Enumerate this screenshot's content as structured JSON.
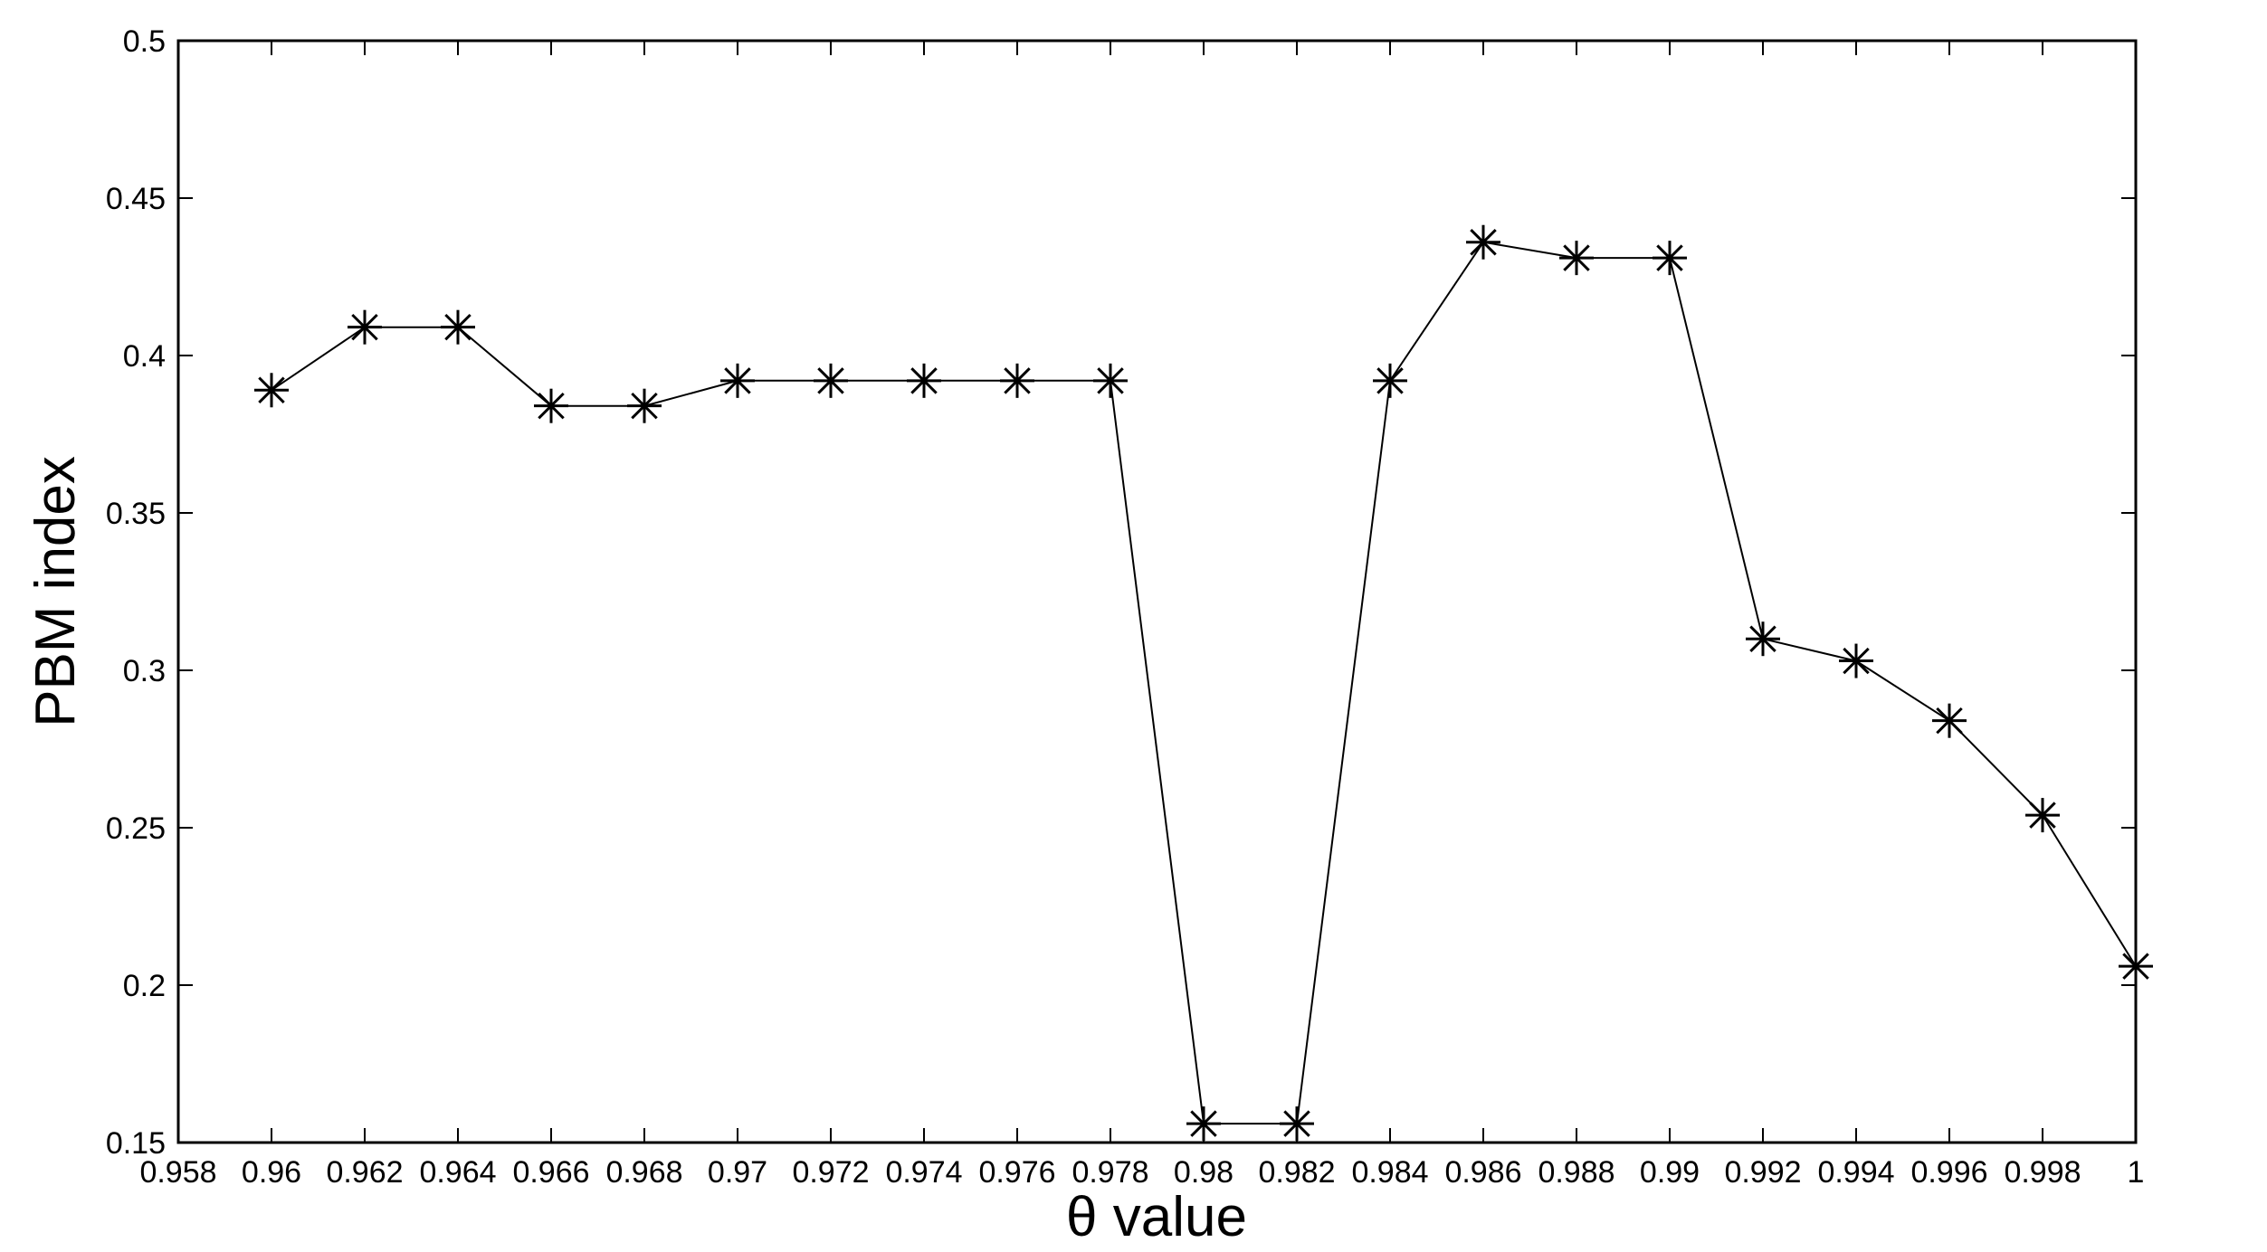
{
  "chart_data": {
    "type": "line",
    "xlabel": "θ value",
    "ylabel": "PBM index",
    "xlim": [
      0.958,
      1.0
    ],
    "ylim": [
      0.15,
      0.5
    ],
    "x_ticks": [
      "0.958",
      "0.96",
      "0.962",
      "0.964",
      "0.966",
      "0.968",
      "0.97",
      "0.972",
      "0.974",
      "0.976",
      "0.978",
      "0.98",
      "0.982",
      "0.984",
      "0.986",
      "0.988",
      "0.99",
      "0.992",
      "0.994",
      "0.996",
      "0.998",
      "1"
    ],
    "y_ticks": [
      "0.15",
      "0.2",
      "0.25",
      "0.3",
      "0.35",
      "0.4",
      "0.45",
      "0.5"
    ],
    "grid": false,
    "marker": "asterisk",
    "line_color": "#000000",
    "series": [
      {
        "x": [
          0.96,
          0.962,
          0.964,
          0.966,
          0.968,
          0.97,
          0.972,
          0.974,
          0.976,
          0.978,
          0.98,
          0.982,
          0.984,
          0.986,
          0.988,
          0.99,
          0.992,
          0.994,
          0.996,
          0.998,
          1.0
        ],
        "values": [
          0.389,
          0.409,
          0.409,
          0.384,
          0.384,
          0.392,
          0.392,
          0.392,
          0.392,
          0.392,
          0.156,
          0.156,
          0.392,
          0.436,
          0.431,
          0.431,
          0.31,
          0.303,
          0.284,
          0.254,
          0.206
        ]
      }
    ]
  }
}
